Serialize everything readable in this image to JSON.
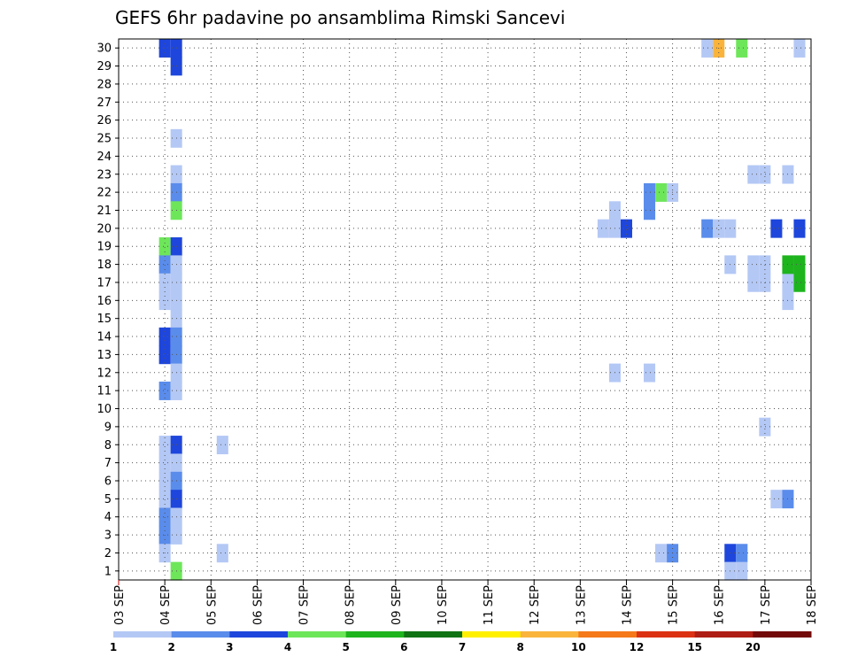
{
  "chart_data": {
    "type": "heatmap",
    "title": "GEFS 6hr padavine po ansamblima Rimski Sancevi",
    "xlabel": "",
    "ylabel": "",
    "x_axis": {
      "type": "date",
      "range": [
        "2019-09-03T00",
        "2019-09-18T00"
      ],
      "step_hours": 6,
      "tick_labels": [
        "03 SEP",
        "04 SEP",
        "05 SEP",
        "06 SEP",
        "07 SEP",
        "08 SEP",
        "09 SEP",
        "10 SEP",
        "11 SEP",
        "12 SEP",
        "13 SEP",
        "14 SEP",
        "15 SEP",
        "16 SEP",
        "17 SEP",
        "18 SEP"
      ]
    },
    "y_axis": {
      "range": [
        0,
        30
      ],
      "tick_labels": [
        "1",
        "2",
        "3",
        "4",
        "5",
        "6",
        "7",
        "8",
        "9",
        "10",
        "11",
        "12",
        "13",
        "14",
        "15",
        "16",
        "17",
        "18",
        "19",
        "20",
        "21",
        "22",
        "23",
        "24",
        "25",
        "26",
        "27",
        "28",
        "29",
        "30"
      ]
    },
    "grid": true,
    "colorbar": {
      "placement": "bottom",
      "colors": [
        "#b4c8f5",
        "#5a8ceb",
        "#1e46dc",
        "#6ee65a",
        "#1eb41e",
        "#0f7314",
        "#fff000",
        "#fab43c",
        "#f57819",
        "#dc3214",
        "#af1e14",
        "#730a0a"
      ],
      "labels": [
        "1",
        "2",
        "3",
        "4",
        "5",
        "6",
        "7",
        "8",
        "10",
        "12",
        "15",
        "20"
      ]
    },
    "cells": [
      {
        "x": "04 SEP 00",
        "y": 30,
        "v": 3
      },
      {
        "x": "04 SEP 06",
        "y": 30,
        "v": 3
      },
      {
        "x": "04 SEP 06",
        "y": 29,
        "v": 3
      },
      {
        "x": "04 SEP 06",
        "y": 25,
        "v": 1
      },
      {
        "x": "04 SEP 06",
        "y": 23,
        "v": 1
      },
      {
        "x": "04 SEP 06",
        "y": 22,
        "v": 2
      },
      {
        "x": "04 SEP 06",
        "y": 21,
        "v": 4
      },
      {
        "x": "04 SEP 00",
        "y": 19,
        "v": 4
      },
      {
        "x": "04 SEP 06",
        "y": 19,
        "v": 3
      },
      {
        "x": "04 SEP 00",
        "y": 18,
        "v": 2
      },
      {
        "x": "04 SEP 06",
        "y": 18,
        "v": 1
      },
      {
        "x": "04 SEP 00",
        "y": 17,
        "v": 1
      },
      {
        "x": "04 SEP 06",
        "y": 17,
        "v": 1
      },
      {
        "x": "04 SEP 00",
        "y": 16,
        "v": 1
      },
      {
        "x": "04 SEP 06",
        "y": 16,
        "v": 1
      },
      {
        "x": "04 SEP 06",
        "y": 15,
        "v": 1
      },
      {
        "x": "04 SEP 00",
        "y": 14,
        "v": 3
      },
      {
        "x": "04 SEP 06",
        "y": 14,
        "v": 2
      },
      {
        "x": "04 SEP 00",
        "y": 13,
        "v": 3
      },
      {
        "x": "04 SEP 06",
        "y": 13,
        "v": 2
      },
      {
        "x": "04 SEP 06",
        "y": 12,
        "v": 1
      },
      {
        "x": "04 SEP 00",
        "y": 11,
        "v": 2
      },
      {
        "x": "04 SEP 06",
        "y": 11,
        "v": 1
      },
      {
        "x": "04 SEP 00",
        "y": 8,
        "v": 1
      },
      {
        "x": "04 SEP 06",
        "y": 8,
        "v": 3
      },
      {
        "x": "04 SEP 00",
        "y": 7,
        "v": 1
      },
      {
        "x": "04 SEP 06",
        "y": 7,
        "v": 1
      },
      {
        "x": "04 SEP 00",
        "y": 6,
        "v": 1
      },
      {
        "x": "04 SEP 06",
        "y": 6,
        "v": 2
      },
      {
        "x": "04 SEP 00",
        "y": 5,
        "v": 1
      },
      {
        "x": "04 SEP 06",
        "y": 5,
        "v": 3
      },
      {
        "x": "04 SEP 00",
        "y": 4,
        "v": 2
      },
      {
        "x": "04 SEP 06",
        "y": 4,
        "v": 1
      },
      {
        "x": "04 SEP 00",
        "y": 3,
        "v": 2
      },
      {
        "x": "04 SEP 06",
        "y": 3,
        "v": 1
      },
      {
        "x": "04 SEP 00",
        "y": 2,
        "v": 1
      },
      {
        "x": "04 SEP 06",
        "y": 1,
        "v": 4
      },
      {
        "x": "05 SEP 06",
        "y": 8,
        "v": 1
      },
      {
        "x": "05 SEP 06",
        "y": 2,
        "v": 1
      },
      {
        "x": "13 SEP 18",
        "y": 21,
        "v": 1
      },
      {
        "x": "13 SEP 12",
        "y": 20,
        "v": 1
      },
      {
        "x": "13 SEP 18",
        "y": 20,
        "v": 1
      },
      {
        "x": "14 SEP 00",
        "y": 20,
        "v": 3
      },
      {
        "x": "13 SEP 18",
        "y": 12,
        "v": 1
      },
      {
        "x": "14 SEP 12",
        "y": 22,
        "v": 2
      },
      {
        "x": "14 SEP 12",
        "y": 21,
        "v": 2
      },
      {
        "x": "14 SEP 12",
        "y": 12,
        "v": 1
      },
      {
        "x": "14 SEP 18",
        "y": 22,
        "v": 4
      },
      {
        "x": "15 SEP 00",
        "y": 22,
        "v": 1
      },
      {
        "x": "14 SEP 18",
        "y": 2,
        "v": 1
      },
      {
        "x": "15 SEP 00",
        "y": 2,
        "v": 2
      },
      {
        "x": "15 SEP 18",
        "y": 30,
        "v": 1
      },
      {
        "x": "16 SEP 00",
        "y": 30,
        "v": 8
      },
      {
        "x": "16 SEP 12",
        "y": 30,
        "v": 4
      },
      {
        "x": "15 SEP 18",
        "y": 20,
        "v": 2
      },
      {
        "x": "16 SEP 00",
        "y": 20,
        "v": 1
      },
      {
        "x": "16 SEP 06",
        "y": 20,
        "v": 1
      },
      {
        "x": "16 SEP 06",
        "y": 18,
        "v": 1
      },
      {
        "x": "16 SEP 06",
        "y": 2,
        "v": 3
      },
      {
        "x": "16 SEP 12",
        "y": 2,
        "v": 2
      },
      {
        "x": "16 SEP 06",
        "y": 1,
        "v": 1
      },
      {
        "x": "16 SEP 12",
        "y": 1,
        "v": 1
      },
      {
        "x": "16 SEP 18",
        "y": 23,
        "v": 1
      },
      {
        "x": "17 SEP 00",
        "y": 23,
        "v": 1
      },
      {
        "x": "17 SEP 06",
        "y": 20,
        "v": 3
      },
      {
        "x": "16 SEP 18",
        "y": 18,
        "v": 1
      },
      {
        "x": "17 SEP 00",
        "y": 18,
        "v": 1
      },
      {
        "x": "16 SEP 18",
        "y": 17,
        "v": 1
      },
      {
        "x": "17 SEP 00",
        "y": 17,
        "v": 1
      },
      {
        "x": "17 SEP 00",
        "y": 9,
        "v": 1
      },
      {
        "x": "17 SEP 06",
        "y": 5,
        "v": 1
      },
      {
        "x": "17 SEP 12",
        "y": 5,
        "v": 2
      },
      {
        "x": "17 SEP 12",
        "y": 23,
        "v": 1
      },
      {
        "x": "17 SEP 12",
        "y": 17,
        "v": 1
      },
      {
        "x": "17 SEP 12",
        "y": 16,
        "v": 1
      },
      {
        "x": "17 SEP 18",
        "y": 30,
        "v": 1
      },
      {
        "x": "17 SEP 18",
        "y": 20,
        "v": 3
      },
      {
        "x": "17 SEP 12",
        "y": 18,
        "v": 5
      },
      {
        "x": "17 SEP 18",
        "y": 18,
        "v": 5
      },
      {
        "x": "17 SEP 18",
        "y": 17,
        "v": 5
      }
    ]
  }
}
